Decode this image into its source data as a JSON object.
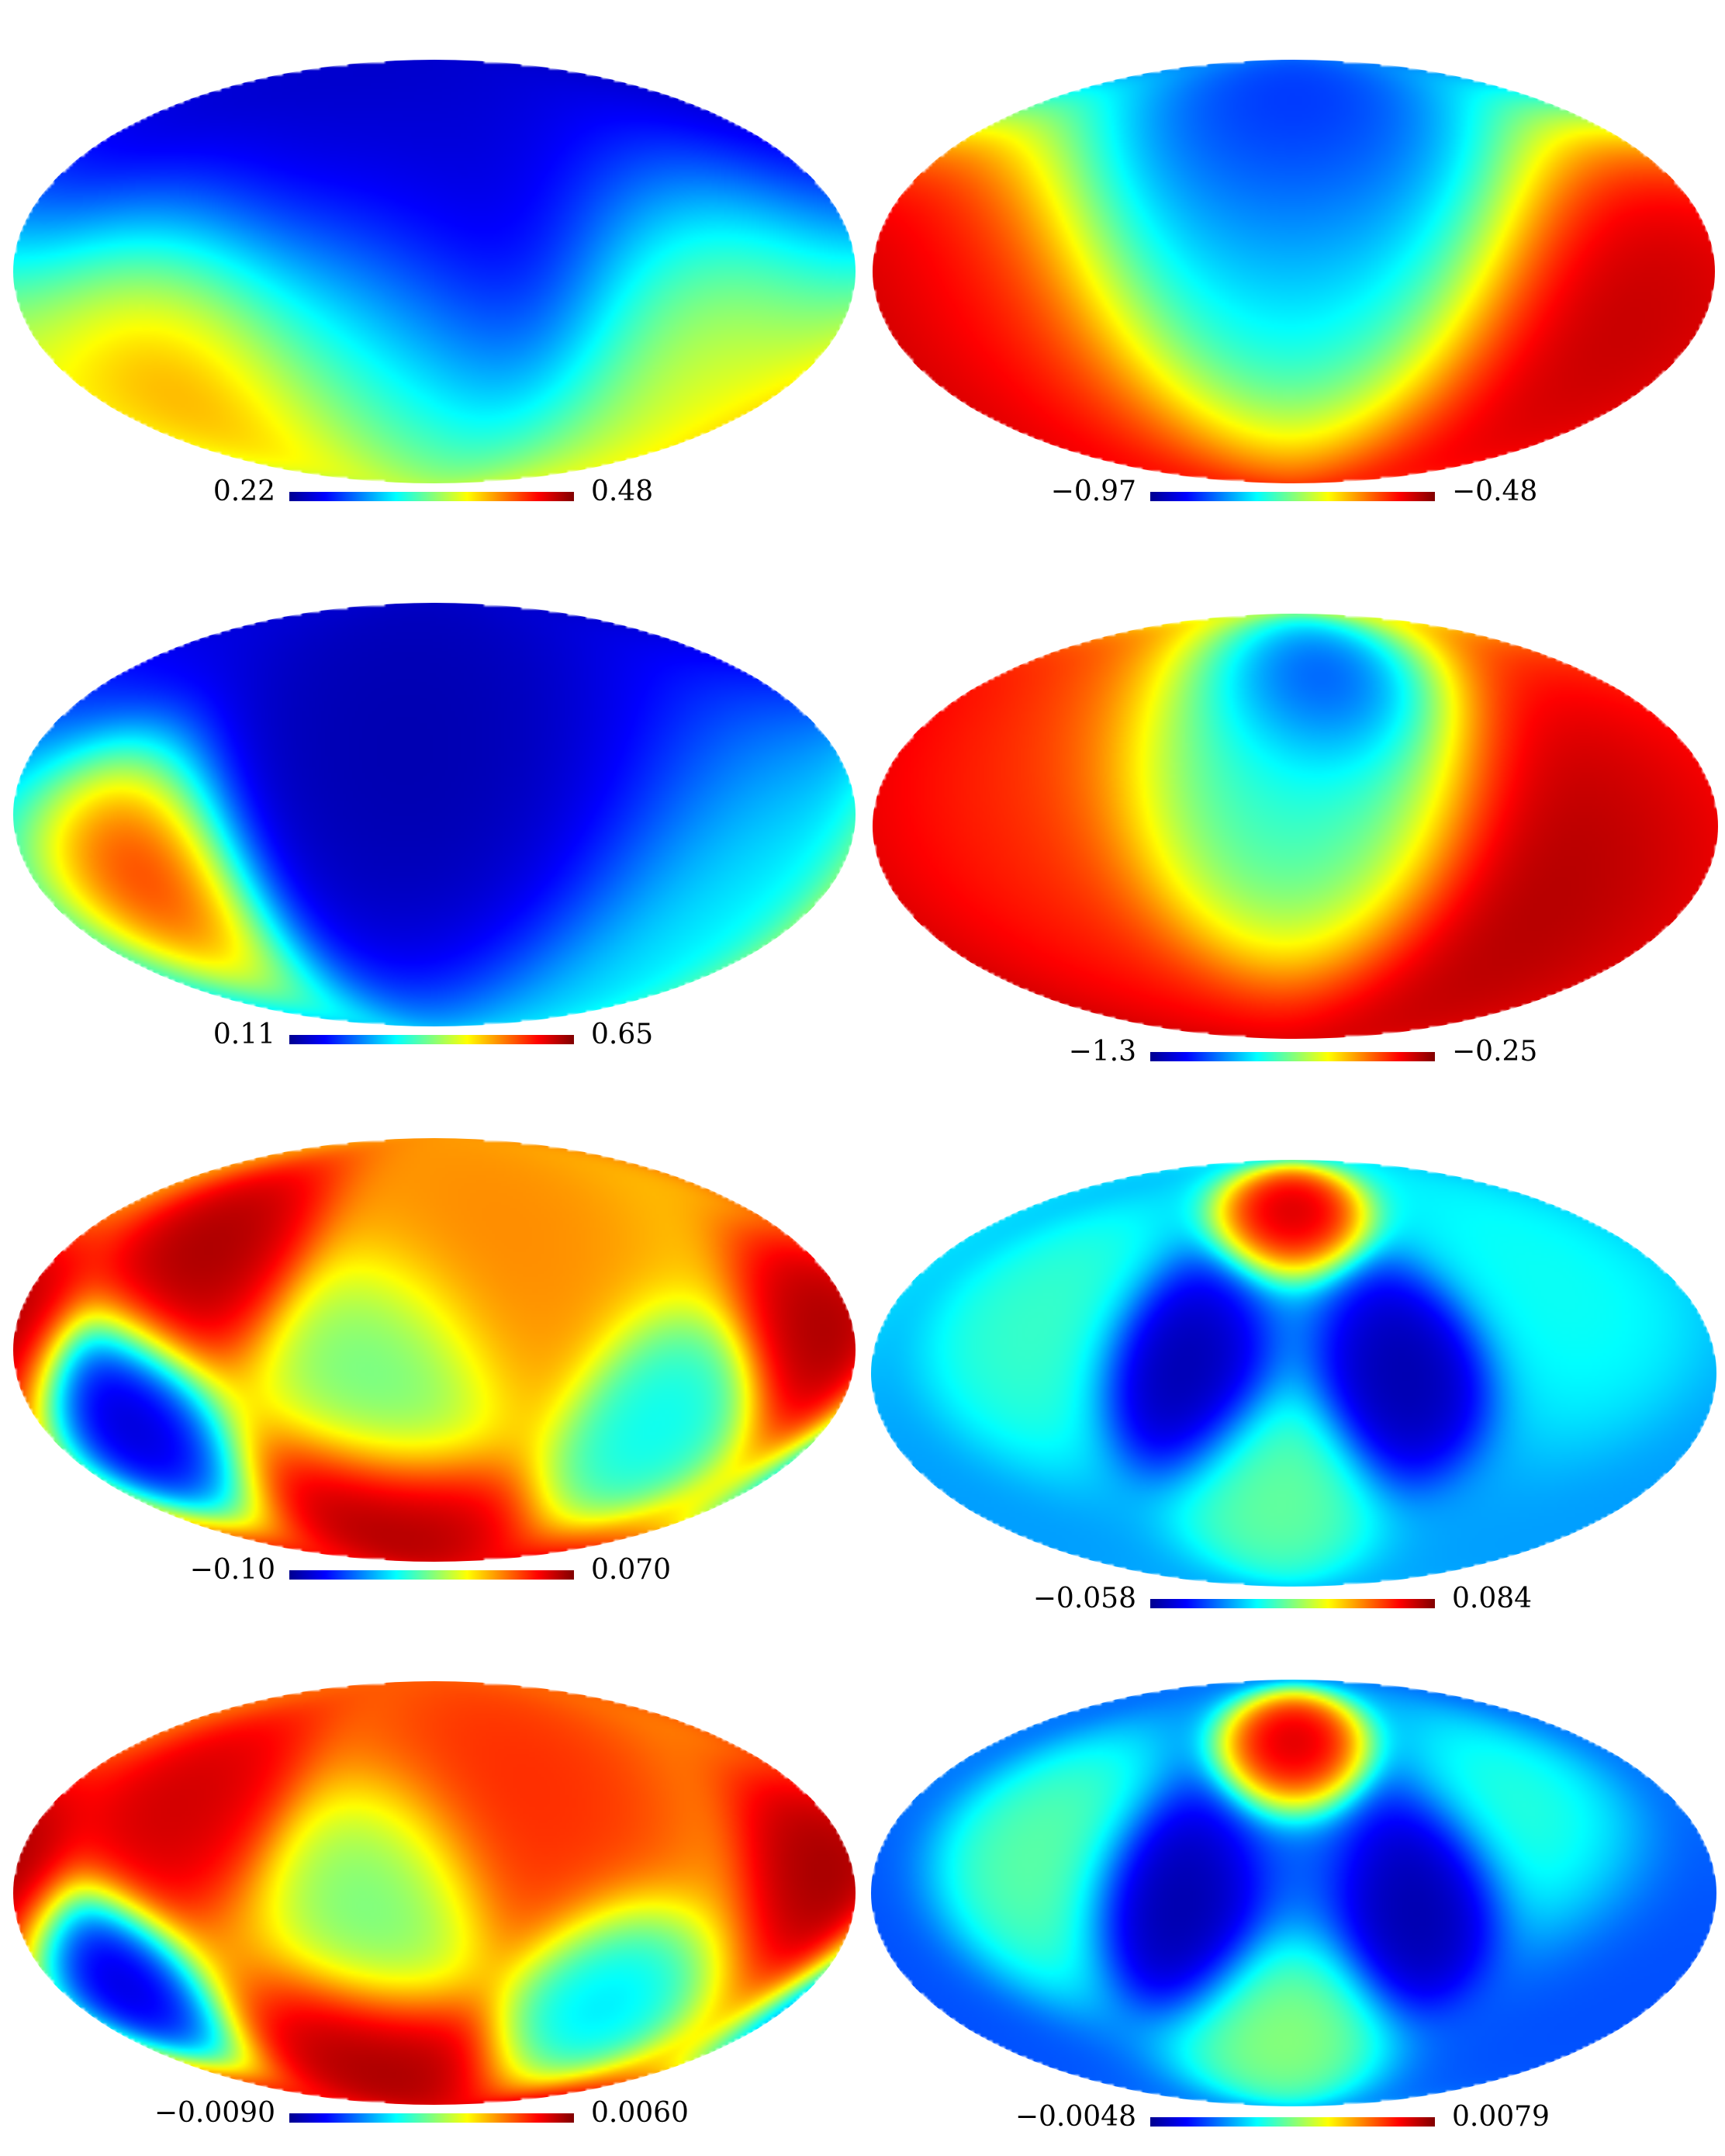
{
  "panels": [
    {
      "id": "r1-left",
      "colorbar_min": "0.22",
      "colorbar_max": "0.48",
      "blobs": [
        {
          "lon": 180,
          "lat": 60,
          "v": 0.0,
          "s": 70
        },
        {
          "lon": 0,
          "lat": -40,
          "v": 0.0,
          "s": 45
        },
        {
          "lon": 35,
          "lat": -55,
          "v": 0.75,
          "s": 35
        },
        {
          "lon": -130,
          "lat": -30,
          "v": 0.8,
          "s": 40
        },
        {
          "lon": 130,
          "lat": -40,
          "v": 1.0,
          "s": 35
        }
      ],
      "background": 0.45
    },
    {
      "id": "r1-right",
      "colorbar_min": "−0.97",
      "colorbar_max": "−0.48",
      "blobs": [
        {
          "lon": 0,
          "lat": 60,
          "v": 0.0,
          "s": 35
        },
        {
          "lon": 0,
          "lat": 15,
          "v": 0.3,
          "s": 55
        },
        {
          "lon": -150,
          "lat": -30,
          "v": 1.0,
          "s": 45
        },
        {
          "lon": 150,
          "lat": -30,
          "v": 0.85,
          "s": 45
        }
      ],
      "background": 0.8
    },
    {
      "id": "r2-left",
      "colorbar_min": "0.11",
      "colorbar_max": "0.65",
      "blobs": [
        {
          "lon": 0,
          "lat": 30,
          "v": 0.0,
          "s": 55
        },
        {
          "lon": -60,
          "lat": 60,
          "v": 0.05,
          "s": 50
        },
        {
          "lon": 135,
          "lat": -20,
          "v": 1.0,
          "s": 25
        },
        {
          "lon": -140,
          "lat": -20,
          "v": 0.4,
          "s": 45
        }
      ],
      "background": 0.25
    },
    {
      "id": "r2-right",
      "colorbar_min": "−1.3",
      "colorbar_max": "−0.25",
      "blobs": [
        {
          "lon": -15,
          "lat": 55,
          "v": 0.0,
          "s": 20
        },
        {
          "lon": 0,
          "lat": 25,
          "v": 0.35,
          "s": 40
        },
        {
          "lon": -150,
          "lat": -20,
          "v": 1.0,
          "s": 50
        },
        {
          "lon": 150,
          "lat": 0,
          "v": 0.8,
          "s": 50
        }
      ],
      "background": 0.85
    },
    {
      "id": "r3-left",
      "colorbar_min": "−0.10",
      "colorbar_max": "0.070",
      "blobs": [
        {
          "lon": -170,
          "lat": 5,
          "v": 1.0,
          "s": 18
        },
        {
          "lon": -100,
          "lat": -25,
          "v": 0.35,
          "s": 18
        },
        {
          "lon": 20,
          "lat": -10,
          "v": 0.45,
          "s": 22
        },
        {
          "lon": 140,
          "lat": -25,
          "v": 0.0,
          "s": 18
        },
        {
          "lon": 110,
          "lat": 35,
          "v": 1.0,
          "s": 20
        },
        {
          "lon": 30,
          "lat": -65,
          "v": 1.0,
          "s": 20
        },
        {
          "lon": -30,
          "lat": 40,
          "v": 0.75,
          "s": 30
        }
      ],
      "background": 0.65
    },
    {
      "id": "r3-right",
      "colorbar_min": "−0.058",
      "colorbar_max": "0.084",
      "blobs": [
        {
          "lon": 0,
          "lat": 60,
          "v": 1.0,
          "s": 12
        },
        {
          "lon": -50,
          "lat": 0,
          "v": 0.0,
          "s": 18
        },
        {
          "lon": 50,
          "lat": 0,
          "v": 0.0,
          "s": 18
        },
        {
          "lon": 10,
          "lat": -45,
          "v": 0.5,
          "s": 18
        },
        {
          "lon": 110,
          "lat": 15,
          "v": 0.45,
          "s": 22
        },
        {
          "lon": -120,
          "lat": 30,
          "v": 0.4,
          "s": 25
        }
      ],
      "background": 0.28
    },
    {
      "id": "r4-left",
      "colorbar_min": "−0.0090",
      "colorbar_max": "0.0060",
      "blobs": [
        {
          "lon": -170,
          "lat": 5,
          "v": 1.0,
          "s": 18
        },
        {
          "lon": -80,
          "lat": -40,
          "v": 0.3,
          "s": 18
        },
        {
          "lon": 20,
          "lat": -5,
          "v": 0.45,
          "s": 22
        },
        {
          "lon": 150,
          "lat": -30,
          "v": 0.0,
          "s": 16
        },
        {
          "lon": 120,
          "lat": 30,
          "v": 0.95,
          "s": 20
        },
        {
          "lon": 30,
          "lat": -65,
          "v": 1.0,
          "s": 20
        },
        {
          "lon": -40,
          "lat": 35,
          "v": 0.85,
          "s": 30
        }
      ],
      "background": 0.7
    },
    {
      "id": "r4-right",
      "colorbar_min": "−0.0048",
      "colorbar_max": "0.0079",
      "blobs": [
        {
          "lon": 0,
          "lat": 55,
          "v": 1.0,
          "s": 12
        },
        {
          "lon": -60,
          "lat": -5,
          "v": 0.0,
          "s": 18
        },
        {
          "lon": 55,
          "lat": -5,
          "v": 0.0,
          "s": 18
        },
        {
          "lon": 5,
          "lat": -55,
          "v": 0.55,
          "s": 18
        },
        {
          "lon": 110,
          "lat": 10,
          "v": 0.5,
          "s": 22
        },
        {
          "lon": -110,
          "lat": 20,
          "v": 0.45,
          "s": 22
        },
        {
          "lon": -150,
          "lat": -30,
          "v": 0.2,
          "s": 30
        }
      ],
      "background": 0.22
    }
  ]
}
